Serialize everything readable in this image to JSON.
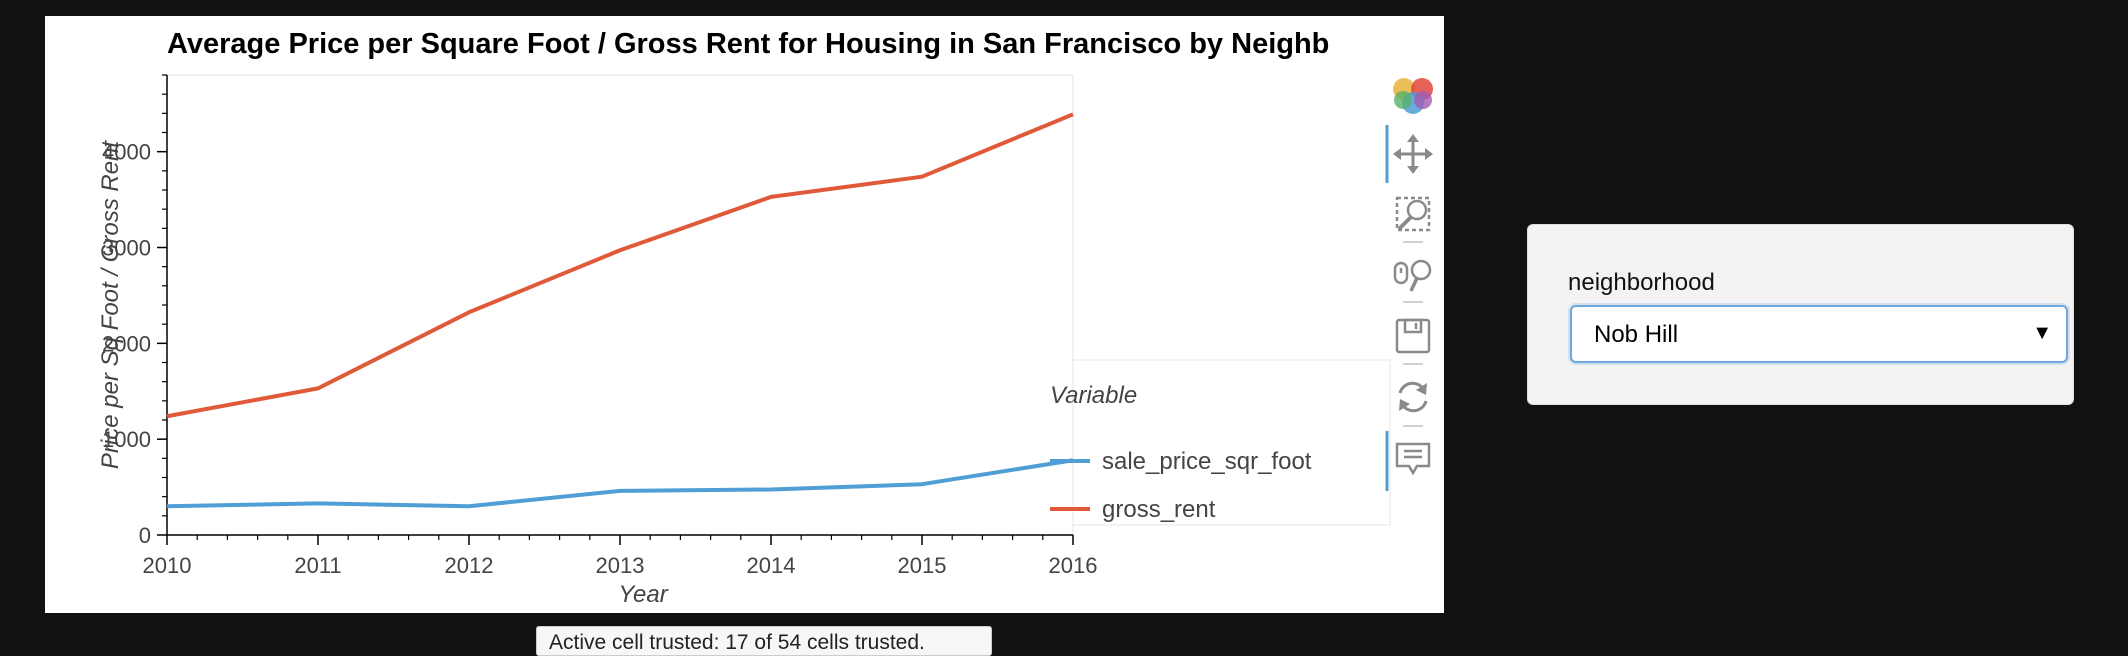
{
  "chart_data": {
    "type": "line",
    "title": "Average Price per Square Foot / Gross Rent for Housing in San Francisco by Neighb",
    "xlabel": "Year",
    "ylabel": "Price per Sq Foot / Gross Rent",
    "x": [
      2010,
      2011,
      2012,
      2013,
      2014,
      2015,
      2016
    ],
    "xlim": [
      2010,
      2016
    ],
    "ylim": [
      0,
      4800
    ],
    "yticks": [
      0,
      1000,
      2000,
      3000,
      4000
    ],
    "grid": false,
    "legend": {
      "title": "Variable",
      "placement": "right"
    },
    "series": [
      {
        "name": "sale_price_sqr_foot",
        "color": "#4f9ed5",
        "values": [
          300,
          330,
          300,
          460,
          475,
          530,
          780
        ]
      },
      {
        "name": "gross_rent",
        "color": "#e05a3a",
        "values": [
          1239,
          1530,
          2324,
          2971,
          3528,
          3739,
          4390
        ]
      }
    ]
  },
  "toolbar": {
    "tools": [
      "bokeh-logo",
      "pan-icon",
      "box-zoom-icon",
      "wheel-zoom-icon",
      "save-icon",
      "reset-icon",
      "hover-icon"
    ]
  },
  "widget": {
    "label": "neighborhood",
    "selected": "Nob Hill"
  },
  "status": {
    "text": "Active cell trusted: 17 of 54 cells trusted."
  }
}
